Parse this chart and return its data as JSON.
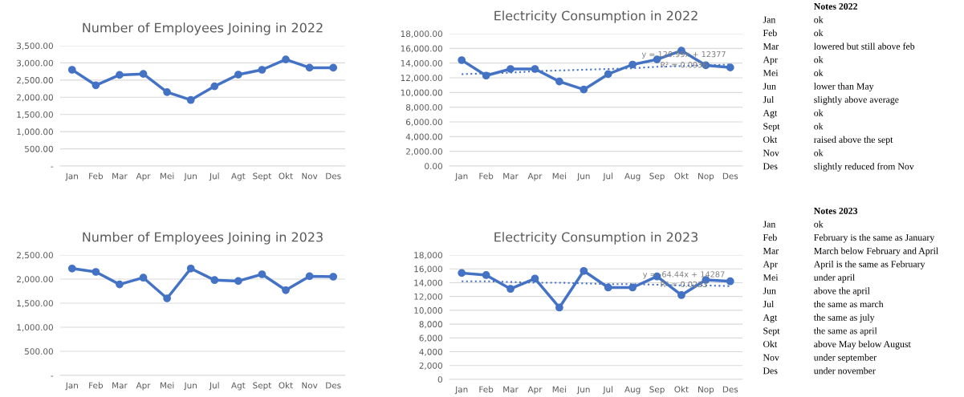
{
  "chart_data": [
    {
      "type": "line",
      "title": "Number of Employees Joining in 2022",
      "categories": [
        "Jan",
        "Feb",
        "Mar",
        "Apr",
        "Mei",
        "Jun",
        "Jul",
        "Agt",
        "Sept",
        "Okt",
        "Nov",
        "Des"
      ],
      "series": [
        {
          "color": "#4472c4",
          "values": [
            2800,
            2350,
            2650,
            2680,
            2150,
            1920,
            2320,
            2660,
            2800,
            3100,
            2860,
            2860
          ]
        }
      ],
      "ylim": [
        0,
        3500
      ],
      "yticks": [
        {
          "value": 0,
          "label": "-"
        },
        {
          "value": 500,
          "label": "500.00"
        },
        {
          "value": 1000,
          "label": "1,000.00"
        },
        {
          "value": 1500,
          "label": "1,500.00"
        },
        {
          "value": 2000,
          "label": "2,000.00"
        },
        {
          "value": 2500,
          "label": "2,500.00"
        },
        {
          "value": 3000,
          "label": "3,000.00"
        },
        {
          "value": 3500,
          "label": "3,500.00"
        }
      ],
      "grid": "y",
      "marker": "circle",
      "line_style": "solid"
    },
    {
      "type": "line",
      "title": "Electricity Consumption in 2022",
      "categories": [
        "Jan",
        "Feb",
        "Mar",
        "Apr",
        "Mei",
        "Jun",
        "Jul",
        "Aug",
        "Sep",
        "Okt",
        "Nop",
        "Des"
      ],
      "series": [
        {
          "color": "#4472c4",
          "values": [
            14400,
            12300,
            13200,
            13200,
            11500,
            10400,
            12500,
            13800,
            14500,
            15700,
            13700,
            13400
          ]
        },
        {
          "type": "line",
          "color": "#4472c4",
          "line_style": "dotted",
          "marker": "none",
          "values": [
            12500,
            12600,
            12700,
            12900,
            13000,
            13100,
            13200,
            13300,
            13500,
            13600,
            13700,
            13800
          ]
        }
      ],
      "ylim": [
        0,
        18000
      ],
      "yticks": [
        {
          "value": 0,
          "label": "0.00"
        },
        {
          "value": 2000,
          "label": "2,000.00"
        },
        {
          "value": 4000,
          "label": "4,000.00"
        },
        {
          "value": 6000,
          "label": "6,000.00"
        },
        {
          "value": 8000,
          "label": "8,000.00"
        },
        {
          "value": 10000,
          "label": "10,000.00"
        },
        {
          "value": 12000,
          "label": "12,000.00"
        },
        {
          "value": 14000,
          "label": "14,000.00"
        },
        {
          "value": 16000,
          "label": "16,000.00"
        },
        {
          "value": 18000,
          "label": "18,000.00"
        }
      ],
      "annotations": [
        "y = 120.99x + 12377",
        "R² = 0.0936"
      ],
      "grid": "y",
      "marker": "circle",
      "line_style": "solid"
    },
    {
      "type": "other",
      "title": "Notes 2022",
      "categories": [
        "Jan",
        "Feb",
        "Mar",
        "Apr",
        "Mei",
        "Jun",
        "Jul",
        "Agt",
        "Sept",
        "Okt",
        "Nov",
        "Des"
      ],
      "annotations": [
        "ok",
        "ok",
        "lowered but still above feb",
        "ok",
        "ok",
        "lower than May",
        "slightly above average",
        "ok",
        "ok",
        "raised above the sept",
        "ok",
        "slightly reduced from Nov"
      ]
    },
    {
      "type": "line",
      "title": "Number of Employees Joining in 2023",
      "categories": [
        "Jan",
        "Feb",
        "Mar",
        "Apr",
        "Mei",
        "Jun",
        "Jul",
        "Agt",
        "Sept",
        "Okt",
        "Nov",
        "Des"
      ],
      "series": [
        {
          "color": "#4472c4",
          "values": [
            2220,
            2150,
            1890,
            2030,
            1600,
            2220,
            1980,
            1960,
            2100,
            1770,
            2060,
            2050
          ]
        }
      ],
      "ylim": [
        0,
        2500
      ],
      "yticks": [
        {
          "value": 0,
          "label": "-"
        },
        {
          "value": 500,
          "label": "500.00"
        },
        {
          "value": 1000,
          "label": "1,000.00"
        },
        {
          "value": 1500,
          "label": "1,500.00"
        },
        {
          "value": 2000,
          "label": "2,000.00"
        },
        {
          "value": 2500,
          "label": "2,500.00"
        }
      ],
      "grid": "y",
      "marker": "circle",
      "line_style": "solid"
    },
    {
      "type": "line",
      "title": "Electricity Consumption in 2023",
      "categories": [
        "Jan",
        "Feb",
        "Mar",
        "Apr",
        "Mei",
        "Jun",
        "Jul",
        "Aug",
        "Sep",
        "Okt",
        "Nop",
        "Des"
      ],
      "series": [
        {
          "color": "#4472c4",
          "values": [
            15400,
            15100,
            13100,
            14600,
            10400,
            15700,
            13300,
            13300,
            14900,
            12200,
            14400,
            14200
          ]
        },
        {
          "type": "line",
          "color": "#4472c4",
          "line_style": "dotted",
          "marker": "none",
          "values": [
            14200,
            14200,
            14100,
            14000,
            14000,
            13900,
            13800,
            13800,
            13700,
            13600,
            13600,
            13500
          ]
        }
      ],
      "ylim": [
        0,
        18000
      ],
      "yticks": [
        0,
        {
          "value": 2000,
          "label": "2,000"
        },
        {
          "value": 4000,
          "label": "4,000"
        },
        {
          "value": 6000,
          "label": "6,000"
        },
        {
          "value": 8000,
          "label": "8,000"
        },
        {
          "value": 10000,
          "label": "10,000"
        },
        {
          "value": 12000,
          "label": "12,000"
        },
        {
          "value": 14000,
          "label": "14,000"
        },
        {
          "value": 16000,
          "label": "16,000"
        },
        {
          "value": 18000,
          "label": "18,000"
        }
      ],
      "annotations": [
        "y = -64.44x + 14287",
        "R² = 0.0233"
      ],
      "grid": "y",
      "marker": "circle",
      "line_style": "solid"
    },
    {
      "type": "other",
      "title": "Notes 2023",
      "categories": [
        "Jan",
        "Feb",
        "Mar",
        "Apr",
        "Mei",
        "Jun",
        "Jul",
        "Agt",
        "Sept",
        "Okt",
        "Nov",
        "Des"
      ],
      "annotations": [
        "ok",
        "February is the same as January",
        "March below February and April",
        "April is the same as February",
        "under april",
        "above the april",
        "the same as march",
        "the same as july",
        "the same as april",
        "above May below August",
        "under september",
        "under november"
      ]
    }
  ]
}
